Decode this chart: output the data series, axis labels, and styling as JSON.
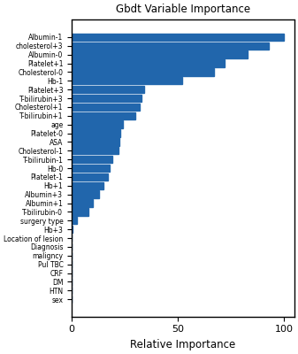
{
  "title": "Gbdt Variable Importance",
  "xlabel": "Relative Importance",
  "categories": [
    "sex",
    "HTN",
    "DM",
    "CRF",
    "Pul TBC",
    "maligncy",
    "Diagnosis",
    "Location of lesion",
    "Hb+3",
    "surgery type",
    "T-bilirubin-0",
    "Albumin+1",
    "Albumin+3",
    "Hb+1",
    "Platelet-1",
    "Hb-0",
    "T-bilirubin-1",
    "Cholesterol-1",
    "ASA",
    "Platelet-0",
    "age",
    "T-bilirubin+1",
    "Cholesterol+1",
    "T-bilirubin+3",
    "Platelet+3",
    "Hb-1",
    "Cholesterol-0",
    "Platelet+1",
    "Albumin-0",
    "cholesterol+3",
    "Albumin-1"
  ],
  "values": [
    0.0,
    0.0,
    0.0,
    0.0,
    0.0,
    0.0,
    0.0,
    0.0,
    0.5,
    2.5,
    8.0,
    10.0,
    13.0,
    15.0,
    17.0,
    18.0,
    19.0,
    22.0,
    22.5,
    23.0,
    24.0,
    30.0,
    32.0,
    33.0,
    34.0,
    52.0,
    67.0,
    72.0,
    83.0,
    93.0,
    100.0
  ],
  "bar_color": "#2166ac",
  "xlim": [
    0,
    105
  ],
  "xticks": [
    0,
    50,
    100
  ],
  "figsize": [
    3.37,
    4.0
  ],
  "dpi": 100,
  "label_fontsize": 5.5,
  "title_fontsize": 8.5,
  "xlabel_fontsize": 8.5,
  "xtick_fontsize": 8.0,
  "bar_height": 0.85
}
